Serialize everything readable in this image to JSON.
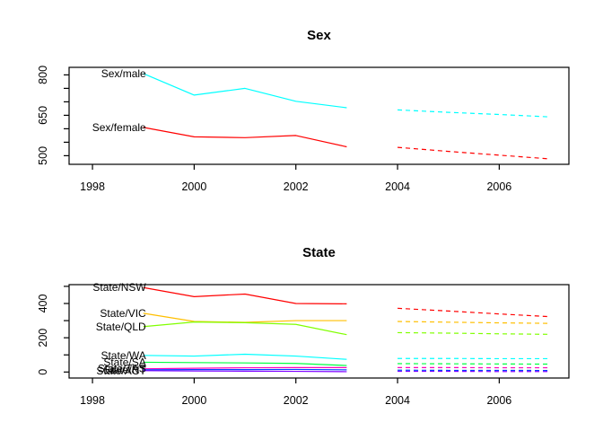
{
  "background": "#FFFFFF",
  "chart_data": [
    {
      "type": "line",
      "title": "Sex",
      "xlabel": "",
      "ylabel": "",
      "grid": false,
      "legend": "inline-labels",
      "xlim": [
        1997.54,
        2007.37
      ],
      "ylim": [
        468,
        828
      ],
      "xticks": [
        1998,
        2000,
        2002,
        2004,
        2006
      ],
      "xtick_labels": [
        "1998",
        "2000",
        "2002",
        "2004",
        "2006"
      ],
      "yticks": [
        500,
        550,
        600,
        650,
        700,
        750,
        800
      ],
      "ytick_labels": [
        "500",
        "",
        "",
        "650",
        "",
        "",
        "800"
      ],
      "x_history": [
        1999,
        2000,
        2001,
        2002,
        2003
      ],
      "x_forecast": [
        2004,
        2005,
        2006,
        2007
      ],
      "series": [
        {
          "name": "Sex/male",
          "color": "#00FFFF",
          "history": [
            805,
            725,
            750,
            702,
            678
          ],
          "forecast": [
            670,
            661,
            653,
            644
          ]
        },
        {
          "name": "Sex/female",
          "color": "#FF0000",
          "history": [
            605,
            570,
            567,
            575,
            533
          ],
          "forecast": [
            531,
            516,
            502,
            488
          ]
        }
      ]
    },
    {
      "type": "line",
      "title": "State",
      "xlabel": "",
      "ylabel": "",
      "grid": false,
      "legend": "inline-labels",
      "xlim": [
        1997.54,
        2007.37
      ],
      "ylim": [
        -35,
        510
      ],
      "xticks": [
        1998,
        2000,
        2002,
        2004,
        2006
      ],
      "xtick_labels": [
        "1998",
        "2000",
        "2002",
        "2004",
        "2006"
      ],
      "yticks": [
        0,
        100,
        200,
        300,
        400,
        500
      ],
      "ytick_labels": [
        "0",
        "",
        "200",
        "",
        "400",
        ""
      ],
      "x_history": [
        1999,
        2000,
        2001,
        2002,
        2003
      ],
      "x_forecast": [
        2004,
        2005,
        2006,
        2007
      ],
      "series": [
        {
          "name": "State/NSW",
          "color": "#FF0000",
          "history": [
            493,
            440,
            455,
            400,
            398
          ],
          "forecast": [
            372,
            356,
            339,
            323
          ]
        },
        {
          "name": "State/VIC",
          "color": "#FFBF00",
          "history": [
            343,
            295,
            290,
            300,
            300
          ],
          "forecast": [
            295,
            291,
            287,
            284
          ]
        },
        {
          "name": "State/QLD",
          "color": "#80FF00",
          "history": [
            265,
            292,
            288,
            278,
            218
          ],
          "forecast": [
            230,
            227,
            223,
            220
          ]
        },
        {
          "name": "State/WA",
          "color": "#00FFFF",
          "history": [
            97,
            93,
            104,
            93,
            74
          ],
          "forecast": [
            79,
            79,
            78,
            78
          ]
        },
        {
          "name": "State/SA",
          "color": "#00FF40",
          "history": [
            57,
            55,
            53,
            50,
            38
          ],
          "forecast": [
            49,
            48,
            47,
            46
          ]
        },
        {
          "name": "State/TAS",
          "color": "#FF00BF",
          "history": [
            19,
            22,
            25,
            26,
            26
          ],
          "forecast": [
            26,
            26,
            25,
            25
          ]
        },
        {
          "name": "State/NT",
          "color": "#0040FF",
          "history": [
            13,
            14,
            14,
            15,
            13
          ],
          "forecast": [
            11,
            10,
            10,
            9
          ]
        },
        {
          "name": "State/ACT",
          "color": "#8000FF",
          "history": [
            8,
            6,
            5,
            4,
            2
          ],
          "forecast": [
            4,
            4,
            3,
            3
          ]
        }
      ]
    }
  ]
}
